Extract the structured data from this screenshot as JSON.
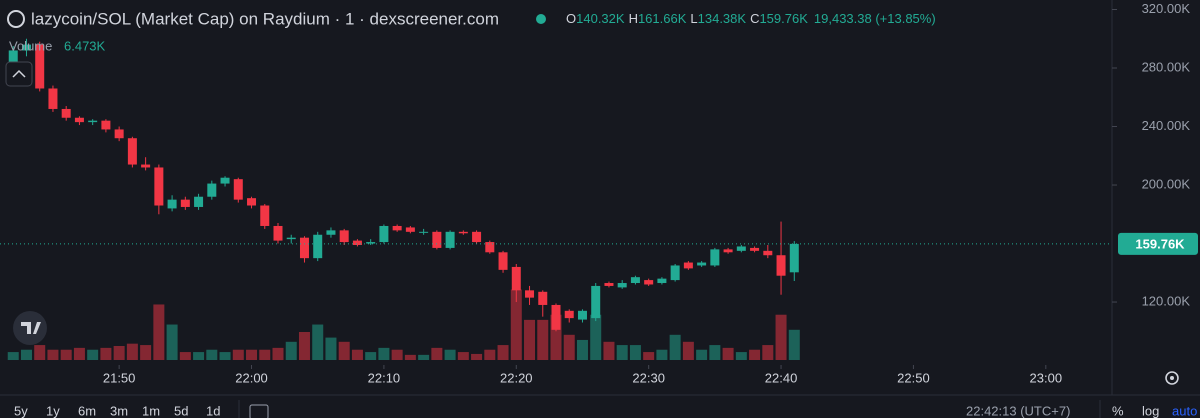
{
  "chart_data": {
    "type": "candlestick",
    "title": "lazycoin/SOL (Market Cap) on Raydium · 1 · dexscreener.com",
    "legend": {
      "open_key": "O",
      "open": "140.32K",
      "high_key": "H",
      "high": "161.66K",
      "low_key": "L",
      "low": "134.38K",
      "close_key": "C",
      "close": "159.76K",
      "change": "19,433.38 (+13.85%)"
    },
    "volume_label": "Volume",
    "volume_last": "6.473K",
    "last_price": {
      "value": 159.76,
      "label": "159.76K"
    },
    "x": [
      "21:42",
      "21:43",
      "21:44",
      "21:45",
      "21:46",
      "21:47",
      "21:48",
      "21:49",
      "21:50",
      "21:51",
      "21:52",
      "21:53",
      "21:54",
      "21:55",
      "21:56",
      "21:57",
      "21:58",
      "21:59",
      "22:00",
      "22:01",
      "22:02",
      "22:03",
      "22:04",
      "22:05",
      "22:06",
      "22:07",
      "22:08",
      "22:09",
      "22:10",
      "22:11",
      "22:12",
      "22:13",
      "22:14",
      "22:15",
      "22:16",
      "22:17",
      "22:18",
      "22:19",
      "22:20",
      "22:21",
      "22:22",
      "22:23",
      "22:24",
      "22:25",
      "22:26",
      "22:27",
      "22:28",
      "22:29",
      "22:30",
      "22:31",
      "22:32",
      "22:33",
      "22:34",
      "22:35",
      "22:36",
      "22:37",
      "22:38",
      "22:39",
      "22:40",
      "22:41"
    ],
    "open": [
      281,
      292,
      296,
      266,
      252,
      246,
      243,
      244,
      238,
      232,
      214,
      212,
      184,
      190,
      185,
      192,
      201,
      204,
      191,
      186,
      172,
      163,
      164,
      150,
      166,
      169,
      162,
      160,
      161,
      172,
      171,
      168,
      168,
      157,
      168,
      168,
      161,
      154,
      144,
      128,
      127,
      118,
      114,
      108,
      109,
      133,
      130,
      133,
      135,
      133,
      135,
      147,
      145,
      145,
      156,
      155,
      157,
      155,
      152,
      140.32
    ],
    "high": [
      295,
      300,
      298,
      268,
      254,
      247,
      245,
      245,
      240,
      233,
      219,
      214,
      193,
      192,
      194,
      203,
      206,
      205,
      192,
      187,
      174,
      166,
      165,
      168,
      171,
      170,
      163,
      163,
      173,
      173,
      172,
      170,
      169,
      169,
      169,
      169,
      162,
      155,
      146,
      131,
      128,
      119,
      115,
      115,
      133,
      134,
      135,
      138,
      136,
      137,
      146,
      148,
      148,
      157,
      157,
      159,
      158,
      159,
      175,
      161.66
    ],
    "low": [
      278,
      288,
      264,
      250,
      244,
      241,
      241,
      236,
      230,
      212,
      210,
      180,
      182,
      183,
      183,
      190,
      199,
      188,
      184,
      170,
      160,
      160,
      147,
      148,
      164,
      159,
      158,
      159,
      160,
      168,
      167,
      166,
      156,
      156,
      166,
      160,
      153,
      140,
      120,
      118,
      110,
      100,
      106,
      106,
      107,
      130,
      129,
      132,
      131,
      132,
      134,
      142,
      144,
      144,
      153,
      154,
      154,
      150,
      125,
      134.38
    ],
    "close": [
      292,
      296,
      266,
      252,
      246,
      243,
      244,
      238,
      232,
      214,
      212,
      186,
      190,
      185,
      192,
      201,
      205,
      190,
      186,
      172,
      162,
      164,
      150,
      166,
      169,
      161,
      159,
      161,
      172,
      169,
      168,
      168,
      157,
      168,
      167,
      161,
      154,
      142,
      128,
      123,
      118,
      101,
      109,
      114,
      131,
      131,
      133,
      137,
      132,
      136,
      145,
      143,
      147,
      156,
      154,
      158,
      155,
      152,
      138,
      159.76
    ],
    "volume": [
      1.7,
      2.2,
      3.2,
      2.2,
      2.2,
      2.6,
      2.2,
      2.6,
      3.0,
      3.5,
      3.2,
      11.9,
      7.6,
      1.7,
      1.7,
      2.2,
      1.7,
      2.2,
      2.2,
      2.2,
      2.6,
      3.9,
      6.0,
      7.6,
      4.8,
      3.9,
      2.2,
      1.7,
      2.6,
      2.2,
      1.1,
      1.1,
      2.6,
      2.2,
      1.7,
      1.3,
      2.2,
      3.2,
      15.1,
      8.6,
      8.6,
      9.7,
      5.4,
      4.3,
      9.7,
      3.9,
      3.2,
      3.2,
      1.7,
      2.2,
      5.4,
      3.9,
      2.2,
      3.2,
      2.6,
      1.7,
      2.2,
      3.2,
      9.7,
      6.473
    ],
    "up_color": "#22ab94",
    "down_color": "#f23645",
    "xlim": [
      "21:41",
      "23:05"
    ],
    "xticks": [
      "21:50",
      "22:00",
      "22:10",
      "22:20",
      "22:30",
      "22:40",
      "22:50",
      "23:00"
    ],
    "ylim": [
      79,
      326.5
    ],
    "yticks": [
      {
        "value": 120,
        "label": "120.00K"
      },
      {
        "value": 200,
        "label": "200.00K"
      },
      {
        "value": 240,
        "label": "240.00K"
      },
      {
        "value": 280,
        "label": "280.00K"
      },
      {
        "value": 320,
        "label": "320.00K"
      }
    ],
    "volume_lim": [
      0,
      30
    ],
    "ranges": [
      "5y",
      "1y",
      "6m",
      "3m",
      "1m",
      "5d",
      "1d"
    ],
    "clock": "22:42:13 (UTC+7)",
    "scale_buttons": [
      "%",
      "log",
      "auto"
    ]
  }
}
